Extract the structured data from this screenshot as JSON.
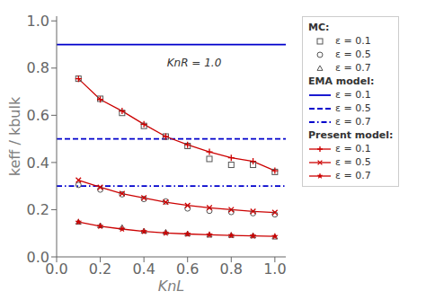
{
  "chart_data": {
    "type": "line",
    "x_label": "KnL",
    "y_label": "keff / kbulk",
    "annotations": [
      {
        "text": "KnR = 1.0"
      }
    ],
    "x": [
      0.1,
      0.2,
      0.3,
      0.4,
      0.5,
      0.6,
      0.7,
      0.8,
      0.9,
      1.0
    ],
    "xlim": [
      0.0,
      1.05
    ],
    "ylim": [
      0.0,
      1.02
    ],
    "xticks": [
      {
        "value": 0,
        "label": "0.0"
      },
      0.2,
      0.4,
      0.6,
      0.8,
      {
        "value": 1,
        "label": "1.0"
      }
    ],
    "yticks": [
      {
        "value": 0,
        "label": "0.0"
      },
      0.2,
      0.4,
      0.6,
      0.8,
      {
        "value": 1,
        "label": "1.0"
      }
    ],
    "grid": false,
    "legend": "right",
    "series": [
      {
        "name": "ε = 0.1",
        "group": "MC:",
        "type": "scatter",
        "color": "#555555",
        "marker": "square",
        "line_style": "none",
        "values": [
          0.755,
          0.67,
          0.61,
          0.555,
          0.51,
          0.47,
          0.415,
          0.39,
          0.39,
          0.36
        ]
      },
      {
        "name": "ε = 0.5",
        "group": "MC:",
        "type": "scatter",
        "color": "#555555",
        "marker": "circle",
        "line_style": "none",
        "values": [
          0.305,
          0.285,
          0.265,
          0.245,
          0.235,
          0.205,
          0.195,
          0.19,
          0.185,
          0.18
        ]
      },
      {
        "name": "ε = 0.7",
        "group": "MC:",
        "type": "scatter",
        "color": "#555555",
        "marker": "triangle",
        "line_style": "none",
        "values": [
          0.148,
          0.133,
          0.125,
          0.11,
          0.105,
          0.098,
          0.093,
          0.092,
          0.09,
          0.085
        ]
      },
      {
        "name": "ε = 0.1",
        "group": "EMA model:",
        "type": "hline",
        "color": "#0000cc",
        "line_style": "solid",
        "value": 0.9
      },
      {
        "name": "ε = 0.5",
        "group": "EMA model:",
        "type": "hline",
        "color": "#0000cc",
        "line_style": "dashed",
        "value": 0.5
      },
      {
        "name": "ε = 0.7",
        "group": "EMA model:",
        "type": "hline",
        "color": "#0000cc",
        "line_style": "dashdot",
        "value": 0.3
      },
      {
        "name": "ε = 0.1",
        "group": "Present model:",
        "type": "line",
        "color": "#cc0000",
        "marker": "plus",
        "line_style": "solid",
        "values": [
          0.755,
          0.667,
          0.618,
          0.562,
          0.51,
          0.475,
          0.445,
          0.42,
          0.405,
          0.365
        ]
      },
      {
        "name": "ε = 0.5",
        "group": "Present model:",
        "type": "line",
        "color": "#cc0000",
        "marker": "x",
        "line_style": "solid",
        "values": [
          0.325,
          0.295,
          0.268,
          0.25,
          0.232,
          0.218,
          0.208,
          0.2,
          0.193,
          0.188
        ]
      },
      {
        "name": "ε = 0.7",
        "group": "Present model:",
        "type": "line",
        "color": "#cc0000",
        "marker": "star",
        "line_style": "solid",
        "values": [
          0.148,
          0.13,
          0.118,
          0.108,
          0.101,
          0.097,
          0.094,
          0.091,
          0.089,
          0.087
        ]
      }
    ]
  }
}
